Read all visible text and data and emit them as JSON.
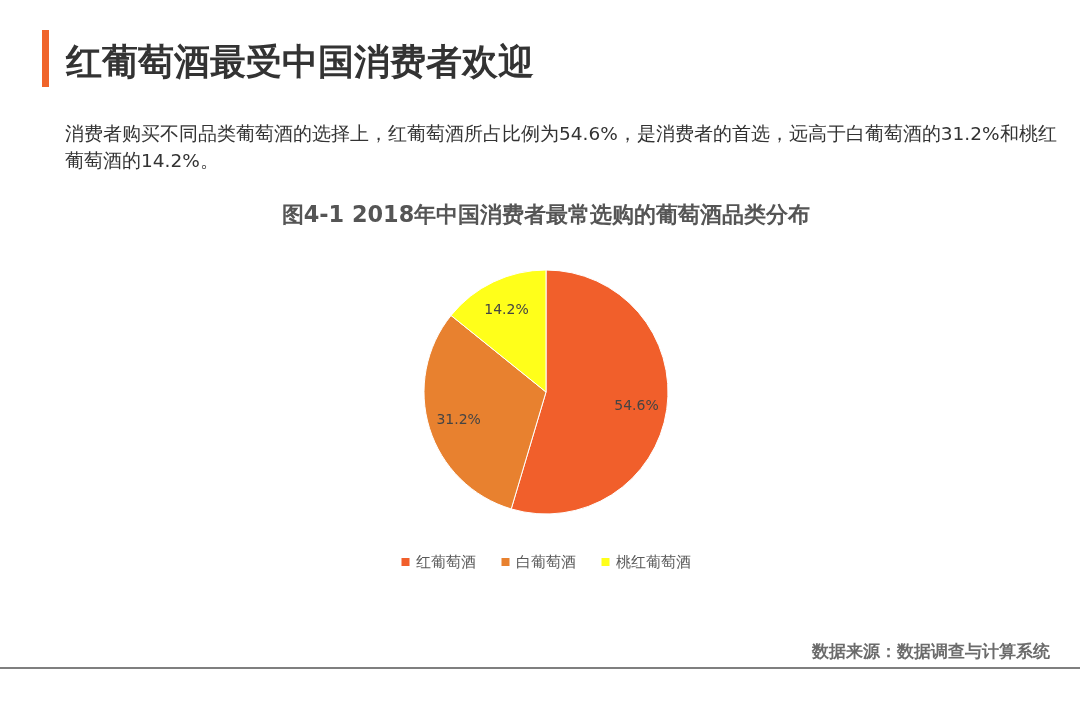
{
  "chart_data": {
    "type": "pie",
    "title": "红葡萄酒最受中国消费者欢迎",
    "subtitle": "消费者购买不同品类葡萄酒的选择上，红葡萄酒所占比例为54.6%，是消费者的首选，远高于白葡萄酒的31.2%和桃红葡萄酒的14.2%。",
    "categories": [
      "红葡萄酒",
      "白葡萄酒",
      "桃红葡萄酒"
    ],
    "values": [
      54.6,
      31.2,
      14.2
    ],
    "colors": [
      "#f15f2b",
      "#e8812f",
      "#ffff1a"
    ],
    "value_labels": [
      "54.6%",
      "31.2%",
      "14.2%"
    ],
    "legend": "bottom",
    "annotations": [
      "图4-1 2018年中国消费者最常选购的葡萄酒品类分布",
      "数据来源：数据调查与计算系统"
    ]
  }
}
